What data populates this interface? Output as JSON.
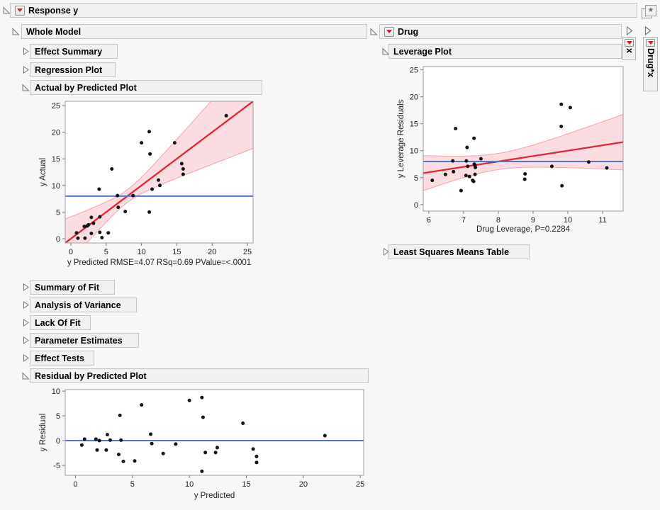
{
  "title_bar": {
    "label": "Response y"
  },
  "left_column": {
    "whole_model": "Whole Model",
    "sections": {
      "effect_summary": "Effect Summary",
      "regression_plot": "Regression Plot",
      "actual_by_predicted": "Actual by Predicted Plot",
      "summary_of_fit": "Summary of Fit",
      "analysis_of_variance": "Analysis of Variance",
      "lack_of_fit": "Lack Of Fit",
      "parameter_estimates": "Parameter Estimates",
      "effect_tests": "Effect Tests",
      "residual_by_predicted": "Residual by Predicted Plot"
    }
  },
  "right_column": {
    "drug": "Drug",
    "leverage_plot": "Leverage Plot",
    "least_squares_means": "Least Squares Means Table"
  },
  "collapsed_tabs": [
    {
      "label": "x"
    },
    {
      "label": "Drug*x"
    }
  ],
  "icons": {
    "star_glyph": "★"
  },
  "colors": {
    "fit_red": "#e02636",
    "mean_blue": "#4f74d2",
    "band_fill": "#fbdce1",
    "band_edge": "#f2a3ae",
    "point": "#141414",
    "frame": "#9c9c9c",
    "tick": "#777777",
    "label_text": "#222222"
  },
  "chart_data": [
    {
      "id": "actual_by_predicted",
      "type": "scatter",
      "title": "Actual by Predicted Plot",
      "xlabel": "y Predicted RMSE=4.07 RSq=0.69 PValue=<.0001",
      "ylabel": "y Actual",
      "xlim": [
        -0.8,
        25.8
      ],
      "ylim": [
        -0.8,
        25.8
      ],
      "xticks": [
        0,
        5,
        10,
        15,
        20,
        25
      ],
      "yticks": [
        0,
        5,
        10,
        15,
        20,
        25
      ],
      "fit_line": {
        "slope": 1,
        "intercept": 0
      },
      "mean_line": 8,
      "band": {
        "w0": 1.2,
        "k": 0.243,
        "xc": 8
      },
      "points": [
        [
          0.8,
          1.1
        ],
        [
          1.0,
          0.1
        ],
        [
          1.9,
          2.3
        ],
        [
          2.0,
          0.1
        ],
        [
          2.3,
          2.4
        ],
        [
          2.5,
          2.6
        ],
        [
          2.9,
          4.0
        ],
        [
          2.9,
          1.0
        ],
        [
          3.2,
          2.9
        ],
        [
          4.0,
          9.3
        ],
        [
          4.1,
          4.1
        ],
        [
          4.1,
          1.2
        ],
        [
          4.4,
          0.2
        ],
        [
          5.3,
          1.1
        ],
        [
          5.8,
          13.1
        ],
        [
          6.6,
          8.1
        ],
        [
          6.7,
          5.9
        ],
        [
          7.7,
          5.1
        ],
        [
          8.8,
          8.1
        ],
        [
          10.0,
          18.0
        ],
        [
          11.1,
          20.1
        ],
        [
          11.2,
          15.9
        ],
        [
          11.1,
          5.0
        ],
        [
          11.5,
          9.3
        ],
        [
          12.4,
          11.0
        ],
        [
          12.6,
          10.0
        ],
        [
          14.7,
          18.0
        ],
        [
          15.7,
          14.1
        ],
        [
          15.9,
          13.1
        ],
        [
          15.9,
          12.1
        ],
        [
          22.0,
          23.1
        ]
      ]
    },
    {
      "id": "leverage",
      "type": "scatter",
      "title": "Leverage Plot",
      "xlabel": "Drug Leverage, P=0.2284",
      "ylabel": "y Leverage Residuals",
      "xlim": [
        5.84,
        11.59
      ],
      "ylim": [
        -1.2,
        25.6
      ],
      "xticks": [
        6,
        7,
        8,
        9,
        10,
        11
      ],
      "yticks": [
        0,
        5,
        10,
        15,
        20,
        25
      ],
      "fit_line": {
        "slope": 1,
        "intercept": 0
      },
      "mean_line": 8,
      "band": {
        "w0": 1.5,
        "k": 1.85,
        "xc": 7.97
      },
      "points": [
        [
          6.1,
          4.5
        ],
        [
          6.48,
          5.6
        ],
        [
          6.71,
          6.1
        ],
        [
          6.77,
          14.1
        ],
        [
          6.69,
          8.1
        ],
        [
          6.93,
          2.6
        ],
        [
          7.1,
          10.6
        ],
        [
          7.08,
          8.1
        ],
        [
          7.12,
          7.1
        ],
        [
          7.07,
          5.4
        ],
        [
          7.17,
          5.2
        ],
        [
          7.26,
          4.5
        ],
        [
          7.29,
          4.3
        ],
        [
          7.3,
          12.3
        ],
        [
          7.31,
          7.5
        ],
        [
          7.33,
          7.3
        ],
        [
          7.34,
          6.9
        ],
        [
          7.33,
          5.6
        ],
        [
          7.5,
          8.5
        ],
        [
          8.77,
          5.7
        ],
        [
          8.76,
          4.7
        ],
        [
          9.81,
          18.6
        ],
        [
          10.07,
          18.0
        ],
        [
          9.81,
          14.5
        ],
        [
          9.54,
          7.1
        ],
        [
          9.83,
          3.5
        ],
        [
          10.6,
          7.9
        ],
        [
          11.12,
          6.8
        ]
      ]
    },
    {
      "id": "residual",
      "type": "scatter",
      "title": "Residual by Predicted Plot",
      "xlabel": "y Predicted",
      "ylabel": "y Residual",
      "xlim": [
        -0.9,
        25.3
      ],
      "ylim": [
        -7.0,
        10.3
      ],
      "xticks": [
        0,
        5,
        10,
        15,
        20,
        25
      ],
      "yticks": [
        -5,
        0,
        5,
        10
      ],
      "mean_line": 0,
      "points": [
        [
          0.56,
          -0.9
        ],
        [
          0.8,
          0.3
        ],
        [
          1.8,
          0.3
        ],
        [
          1.9,
          -1.9
        ],
        [
          2.1,
          0.0
        ],
        [
          2.8,
          1.2
        ],
        [
          2.7,
          -1.9
        ],
        [
          3.05,
          0.1
        ],
        [
          3.9,
          5.1
        ],
        [
          4.0,
          0.1
        ],
        [
          3.8,
          -2.8
        ],
        [
          4.2,
          -4.2
        ],
        [
          5.2,
          -4.1
        ],
        [
          5.8,
          7.2
        ],
        [
          6.6,
          1.3
        ],
        [
          6.7,
          -0.6
        ],
        [
          7.7,
          -2.6
        ],
        [
          8.8,
          -0.7
        ],
        [
          10.0,
          8.1
        ],
        [
          11.1,
          8.7
        ],
        [
          11.2,
          4.7
        ],
        [
          11.4,
          -2.4
        ],
        [
          11.1,
          -6.2
        ],
        [
          12.45,
          -1.4
        ],
        [
          12.3,
          -2.4
        ],
        [
          14.7,
          3.5
        ],
        [
          15.6,
          -1.7
        ],
        [
          15.9,
          -3.2
        ],
        [
          15.9,
          -4.4
        ],
        [
          21.9,
          1.0
        ]
      ]
    }
  ]
}
